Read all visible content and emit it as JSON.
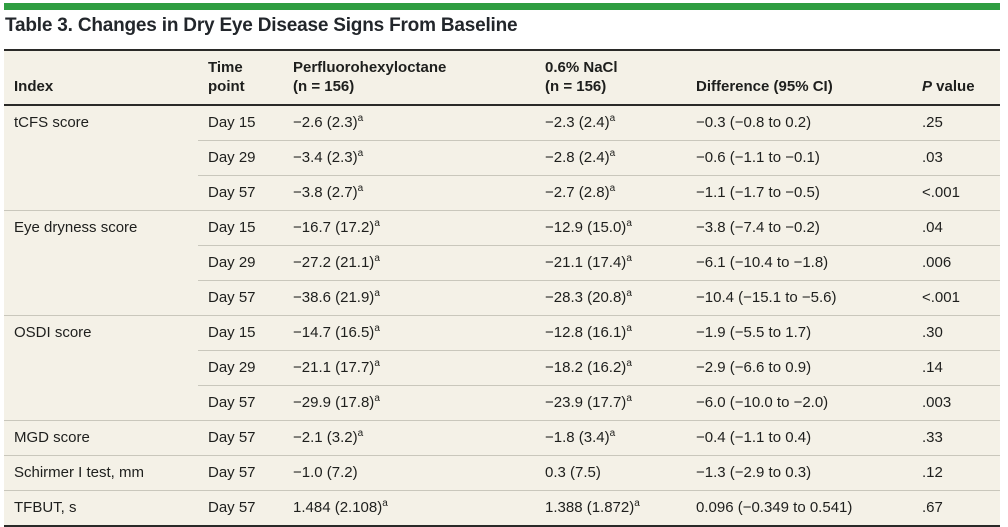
{
  "accent_color": "#2f9e41",
  "title": "Table 3. Changes in Dry Eye Disease Signs From Baseline",
  "table": {
    "headers": {
      "index": "Index",
      "time_point": "Time point",
      "drug_name": "Perfluorohexyloctane",
      "drug_n": "(n = 156)",
      "nacl_name": "0.6% NaCl",
      "nacl_n": "(n = 156)",
      "difference": "Difference (95% CI)",
      "p_italic": "P",
      "p_rest": " value"
    },
    "rows": [
      {
        "index": "tCFS score",
        "time": "Day 15",
        "drug": "−2.6 (2.3)",
        "drug_sup": "a",
        "nacl": "−2.3 (2.4)",
        "nacl_sup": "a",
        "diff": "−0.3 (−0.8 to 0.2)",
        "p": ".25"
      },
      {
        "index": "",
        "time": "Day 29",
        "drug": "−3.4 (2.3)",
        "drug_sup": "a",
        "nacl": "−2.8 (2.4)",
        "nacl_sup": "a",
        "diff": "−0.6 (−1.1 to −0.1)",
        "p": ".03"
      },
      {
        "index": "",
        "time": "Day 57",
        "drug": "−3.8 (2.7)",
        "drug_sup": "a",
        "nacl": "−2.7 (2.8)",
        "nacl_sup": "a",
        "diff": "−1.1 (−1.7 to −0.5)",
        "p": "<.001"
      },
      {
        "index": "Eye dryness score",
        "time": "Day 15",
        "drug": "−16.7 (17.2)",
        "drug_sup": "a",
        "nacl": "−12.9 (15.0)",
        "nacl_sup": "a",
        "diff": "−3.8 (−7.4 to −0.2)",
        "p": ".04"
      },
      {
        "index": "",
        "time": "Day 29",
        "drug": "−27.2 (21.1)",
        "drug_sup": "a",
        "nacl": "−21.1 (17.4)",
        "nacl_sup": "a",
        "diff": "−6.1 (−10.4 to −1.8)",
        "p": ".006"
      },
      {
        "index": "",
        "time": "Day 57",
        "drug": "−38.6 (21.9)",
        "drug_sup": "a",
        "nacl": "−28.3 (20.8)",
        "nacl_sup": "a",
        "diff": "−10.4 (−15.1 to −5.6)",
        "p": "<.001"
      },
      {
        "index": "OSDI score",
        "time": "Day 15",
        "drug": "−14.7 (16.5)",
        "drug_sup": "a",
        "nacl": "−12.8 (16.1)",
        "nacl_sup": "a",
        "diff": "−1.9 (−5.5 to 1.7)",
        "p": ".30"
      },
      {
        "index": "",
        "time": "Day 29",
        "drug": "−21.1 (17.7)",
        "drug_sup": "a",
        "nacl": "−18.2 (16.2)",
        "nacl_sup": "a",
        "diff": "−2.9 (−6.6 to 0.9)",
        "p": ".14"
      },
      {
        "index": "",
        "time": "Day 57",
        "drug": "−29.9 (17.8)",
        "drug_sup": "a",
        "nacl": "−23.9 (17.7)",
        "nacl_sup": "a",
        "diff": "−6.0 (−10.0 to −2.0)",
        "p": ".003"
      },
      {
        "index": "MGD score",
        "time": "Day 57",
        "drug": "−2.1 (3.2)",
        "drug_sup": "a",
        "nacl": "−1.8 (3.4)",
        "nacl_sup": "a",
        "diff": "−0.4 (−1.1 to 0.4)",
        "p": ".33"
      },
      {
        "index": "Schirmer I test, mm",
        "time": "Day 57",
        "drug": "−1.0 (7.2)",
        "drug_sup": "",
        "nacl": "0.3 (7.5)",
        "nacl_sup": "",
        "diff": "−1.3 (−2.9 to 0.3)",
        "p": ".12"
      },
      {
        "index": "TFBUT, s",
        "time": "Day 57",
        "drug": "1.484 (2.108)",
        "drug_sup": "a",
        "nacl": "1.388 (1.872)",
        "nacl_sup": "a",
        "diff": "0.096 (−0.349 to 0.541)",
        "p": ".67"
      }
    ]
  }
}
